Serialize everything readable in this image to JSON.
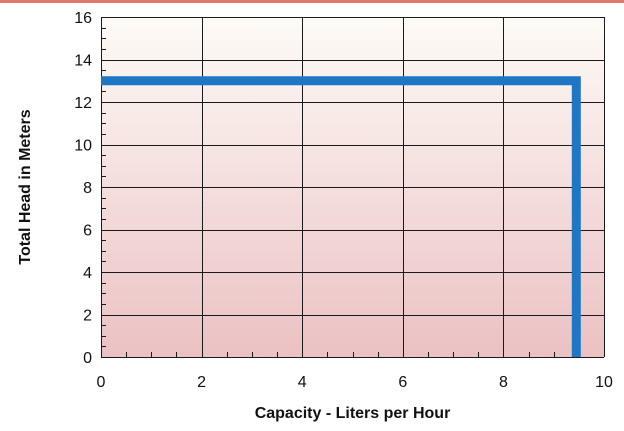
{
  "colors": {
    "accent_rule": "#e2786c",
    "series": "#1e76c4",
    "gradient_top": "#fdfbf7",
    "gradient_bottom": "#ebc1c3",
    "grid": "#1a1a1a"
  },
  "chart_data": {
    "type": "line",
    "title": "",
    "xlabel": "Capacity - Liters per Hour",
    "ylabel": "Total Head in Meters",
    "xlim": [
      0,
      10
    ],
    "ylim": [
      0,
      16
    ],
    "x_ticks": [
      0,
      2,
      4,
      6,
      8,
      10
    ],
    "y_ticks": [
      0,
      2,
      4,
      6,
      8,
      10,
      12,
      14,
      16
    ],
    "x_tick_labels": [
      "0",
      "2",
      "4",
      "6",
      "8",
      "10"
    ],
    "y_tick_labels": [
      "0",
      "2",
      "4",
      "6",
      "8",
      "10",
      "12",
      "14",
      "16"
    ],
    "grid": true,
    "series": [
      {
        "points": [
          [
            0,
            13
          ],
          [
            9.45,
            13
          ],
          [
            9.45,
            0
          ]
        ]
      }
    ]
  }
}
